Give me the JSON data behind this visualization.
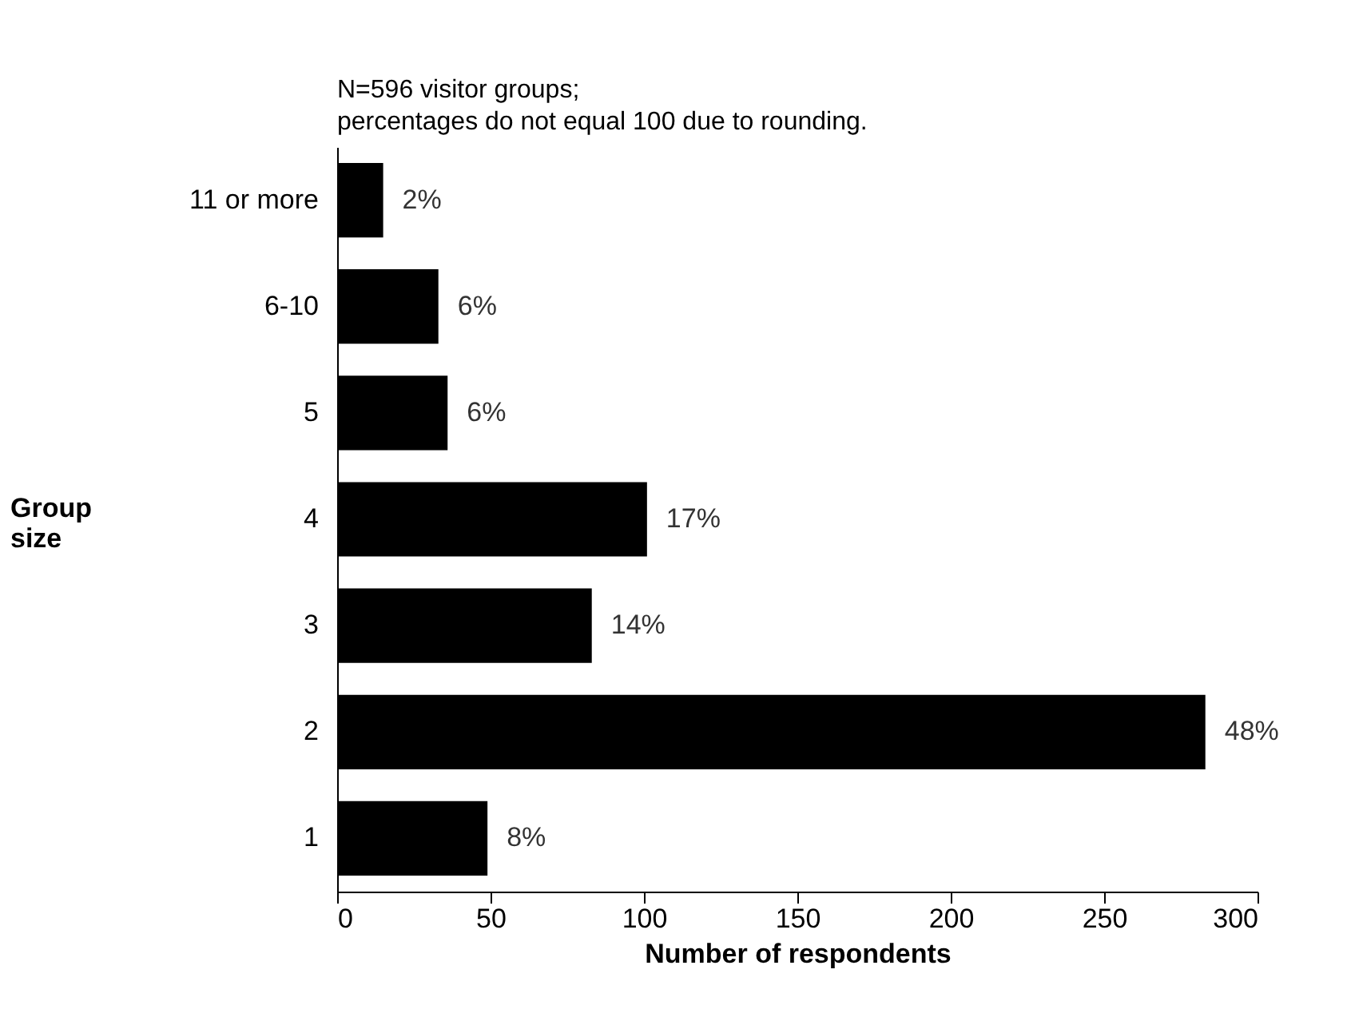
{
  "chart_data": {
    "type": "bar",
    "orientation": "horizontal",
    "title": "N=596 visitor groups;",
    "subtitle": "percentages do not equal 100 due to rounding.",
    "xlabel": "Number of respondents",
    "ylabel": "Group size",
    "categories": [
      "11 or more",
      "6-10",
      "5",
      "4",
      "3",
      "2",
      "1"
    ],
    "values": [
      15,
      33,
      36,
      101,
      83,
      283,
      49
    ],
    "annotations": [
      {
        "text": "2%",
        "x": 15,
        "y": "11 or more"
      },
      {
        "text": "6%",
        "x": 33,
        "y": "6-10"
      },
      {
        "text": "6%",
        "x": 36,
        "y": "5"
      },
      {
        "text": "17%",
        "x": 101,
        "y": "4"
      },
      {
        "text": "14%",
        "x": 83,
        "y": "3"
      },
      {
        "text": "48%",
        "x": 283,
        "y": "2"
      },
      {
        "text": "8%",
        "x": 49,
        "y": "1"
      }
    ],
    "color": "#000000",
    "xlim": [
      0,
      300
    ],
    "xticks": [
      0,
      50,
      100,
      150,
      200,
      250,
      300
    ],
    "grid": false
  }
}
